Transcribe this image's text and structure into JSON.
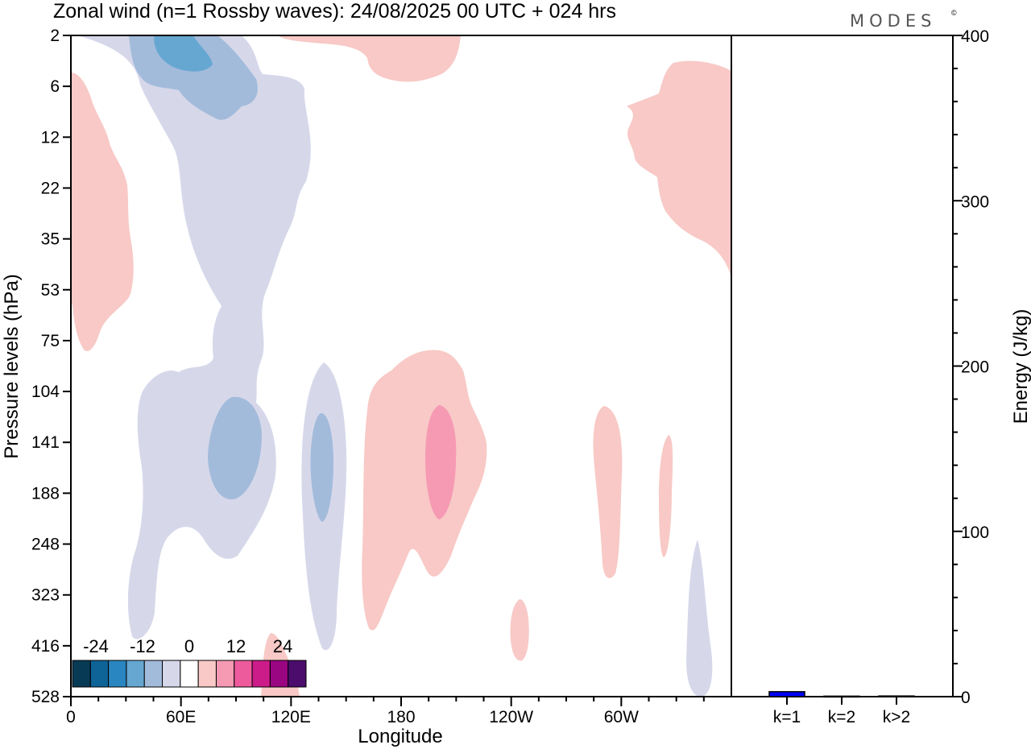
{
  "header": {
    "title": "Zonal wind (n=1 Rossby waves):  24/08/2025  00 UTC  + 024 hrs",
    "logo": "MODES",
    "logo_mark": "©"
  },
  "chart_data": [
    {
      "type": "heatmap",
      "title": "Zonal wind (n=1 Rossby waves):  24/08/2025  00 UTC  + 024 hrs",
      "xlabel": "Longitude",
      "ylabel": "Pressure levels (hPa)",
      "x_ticks": [
        "0",
        "60E",
        "120E",
        "180",
        "120W",
        "60W"
      ],
      "x_tick_values": [
        0,
        60,
        120,
        180,
        240,
        300
      ],
      "xlim": [
        0,
        360
      ],
      "y_ticks": [
        "2",
        "6",
        "12",
        "22",
        "35",
        "53",
        "75",
        "104",
        "141",
        "188",
        "248",
        "323",
        "416",
        "528"
      ],
      "colorbar": {
        "tick_labels": [
          "-24",
          "-12",
          "0",
          "12",
          "24"
        ],
        "levels": [
          -30,
          -25,
          -20,
          -15,
          -10,
          -5,
          0,
          5,
          10,
          15,
          20,
          25,
          30
        ],
        "colors": [
          "#073a55",
          "#0e6397",
          "#2a86c0",
          "#66a7d2",
          "#a3bbdb",
          "#d6d8ea",
          "#ffffff",
          "#f8c9c6",
          "#f69ab4",
          "#ee5b9d",
          "#cc1c8a",
          "#9a0682",
          "#4b0c6b"
        ]
      },
      "regions": [
        {
          "lon": [
            5,
            35
          ],
          "level": "2-75",
          "value": 5
        },
        {
          "lon": [
            0,
            130
          ],
          "level": "2-416",
          "value": -5
        },
        {
          "lon": [
            30,
            100
          ],
          "level": "2-12",
          "value": -10
        },
        {
          "lon": [
            45,
            75
          ],
          "level": "2-6",
          "value": -15
        },
        {
          "lon": [
            75,
            105
          ],
          "level": "104-188",
          "value": -10
        },
        {
          "lon": [
            125,
            150
          ],
          "level": "75-416",
          "value": -5
        },
        {
          "lon": [
            130,
            140
          ],
          "level": "104-188",
          "value": -10
        },
        {
          "lon": [
            110,
            210
          ],
          "level": "2-6",
          "value": 5
        },
        {
          "lon": [
            160,
            235
          ],
          "level": "75-416",
          "value": 5
        },
        {
          "lon": [
            195,
            210
          ],
          "level": "104-188",
          "value": 10
        },
        {
          "lon": [
            300,
            360
          ],
          "level": "6-53",
          "value": 5
        },
        {
          "lon": [
            285,
            300
          ],
          "level": "104-323",
          "value": 5
        },
        {
          "lon": [
            320,
            330
          ],
          "level": "104-248",
          "value": 5
        },
        {
          "lon": [
            335,
            350
          ],
          "level": "248-528",
          "value": -5
        },
        {
          "lon": [
            240,
            250
          ],
          "level": "323-416",
          "value": 5
        },
        {
          "lon": [
            105,
            125
          ],
          "level": "416-528",
          "value": 5
        }
      ]
    },
    {
      "type": "bar",
      "ylabel": "Energy (J/kg)",
      "categories": [
        "k=1",
        "k=2",
        "k>2"
      ],
      "values": [
        3,
        0.3,
        0.4
      ],
      "ylim": [
        0,
        400
      ],
      "y_ticks": [
        "0",
        "100",
        "200",
        "300",
        "400"
      ],
      "colors": [
        "#0000ff",
        "#888888",
        "#888888"
      ]
    }
  ]
}
